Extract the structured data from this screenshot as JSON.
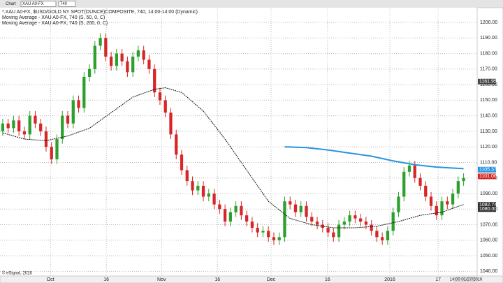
{
  "toolbar": {
    "title": "Chart",
    "symbol": "XAU A0-FX",
    "interval": "740"
  },
  "footer": {
    "copyright": "© eSignal, 2016",
    "time": "14:00 01/27/2016"
  },
  "chart_data": {
    "type": "candlestick",
    "legend": [
      "*.XAU A0-FX, $USD/GOLD NY SPOT(OUNCE)COMPOSITE, 740, 14:00-14:00 (Dynamic)"
    ],
    "x": [
      0,
      1,
      2,
      3,
      4,
      5,
      6,
      7,
      8,
      9,
      10,
      11,
      12,
      13,
      14,
      15,
      16,
      17,
      18,
      19,
      20,
      21,
      22,
      23,
      24,
      25,
      26,
      27,
      28,
      29,
      30,
      31,
      32,
      33,
      34,
      35,
      36,
      37,
      38,
      39,
      40,
      41,
      42,
      43,
      44,
      45,
      46,
      47,
      48,
      49,
      50,
      51,
      52,
      53,
      54,
      55,
      56,
      57,
      58,
      59,
      60,
      61,
      62,
      63,
      64,
      65,
      66,
      67,
      68,
      69,
      70,
      71,
      72,
      73,
      74,
      75,
      76,
      77,
      78,
      79,
      80,
      81,
      82,
      83,
      84,
      85
    ],
    "open": [
      1130,
      1135,
      1132,
      1137,
      1130,
      1128,
      1140,
      1135,
      1130,
      1120,
      1112,
      1125,
      1140,
      1135,
      1150,
      1145,
      1165,
      1170,
      1185,
      1190,
      1178,
      1172,
      1180,
      1175,
      1168,
      1178,
      1182,
      1176,
      1170,
      1155,
      1150,
      1142,
      1128,
      1115,
      1105,
      1098,
      1092,
      1095,
      1088,
      1090,
      1083,
      1080,
      1072,
      1078,
      1082,
      1076,
      1072,
      1068,
      1065,
      1066,
      1062,
      1060,
      1062,
      1085,
      1083,
      1078,
      1082,
      1075,
      1072,
      1070,
      1068,
      1065,
      1062,
      1070,
      1072,
      1076,
      1074,
      1072,
      1070,
      1066,
      1062,
      1060,
      1066,
      1078,
      1088,
      1104,
      1108,
      1100,
      1095,
      1088,
      1082,
      1076,
      1085,
      1083,
      1090,
      1098
    ],
    "high": [
      1138,
      1138,
      1140,
      1140,
      1133,
      1143,
      1143,
      1138,
      1133,
      1123,
      1128,
      1143,
      1143,
      1153,
      1153,
      1168,
      1173,
      1188,
      1193,
      1193,
      1181,
      1183,
      1183,
      1178,
      1181,
      1185,
      1185,
      1179,
      1173,
      1158,
      1153,
      1145,
      1131,
      1118,
      1108,
      1101,
      1098,
      1098,
      1093,
      1093,
      1086,
      1083,
      1081,
      1085,
      1085,
      1079,
      1075,
      1071,
      1069,
      1069,
      1065,
      1065,
      1088,
      1088,
      1086,
      1085,
      1085,
      1078,
      1075,
      1073,
      1071,
      1068,
      1073,
      1075,
      1079,
      1079,
      1077,
      1075,
      1073,
      1069,
      1065,
      1069,
      1081,
      1091,
      1107,
      1111,
      1111,
      1103,
      1098,
      1091,
      1085,
      1088,
      1088,
      1093,
      1101,
      1103
    ],
    "low": [
      1127,
      1129,
      1129,
      1127,
      1125,
      1125,
      1132,
      1127,
      1117,
      1109,
      1109,
      1122,
      1132,
      1132,
      1142,
      1142,
      1162,
      1167,
      1182,
      1175,
      1169,
      1169,
      1172,
      1165,
      1165,
      1175,
      1173,
      1167,
      1152,
      1147,
      1139,
      1125,
      1112,
      1102,
      1095,
      1089,
      1089,
      1085,
      1085,
      1080,
      1077,
      1069,
      1069,
      1075,
      1073,
      1069,
      1065,
      1062,
      1062,
      1059,
      1057,
      1057,
      1059,
      1080,
      1075,
      1075,
      1072,
      1069,
      1067,
      1065,
      1062,
      1059,
      1059,
      1067,
      1069,
      1071,
      1069,
      1067,
      1063,
      1059,
      1057,
      1057,
      1063,
      1075,
      1085,
      1101,
      1097,
      1092,
      1085,
      1079,
      1073,
      1073,
      1080,
      1080,
      1087,
      1095
    ],
    "close": [
      1135,
      1132,
      1137,
      1130,
      1128,
      1140,
      1135,
      1130,
      1120,
      1112,
      1125,
      1140,
      1135,
      1150,
      1145,
      1165,
      1170,
      1185,
      1190,
      1178,
      1172,
      1180,
      1175,
      1168,
      1178,
      1182,
      1176,
      1170,
      1155,
      1150,
      1142,
      1128,
      1115,
      1105,
      1098,
      1092,
      1095,
      1088,
      1090,
      1083,
      1080,
      1072,
      1078,
      1082,
      1076,
      1072,
      1068,
      1065,
      1066,
      1062,
      1060,
      1062,
      1085,
      1083,
      1078,
      1082,
      1075,
      1072,
      1070,
      1068,
      1065,
      1062,
      1070,
      1072,
      1076,
      1074,
      1072,
      1070,
      1066,
      1062,
      1060,
      1066,
      1078,
      1088,
      1104,
      1108,
      1100,
      1095,
      1088,
      1082,
      1076,
      1085,
      1083,
      1090,
      1098,
      1100
    ],
    "up_color": "#2ca02c",
    "down_color": "#d62728",
    "series": [
      {
        "name": "Moving Average - XAU A0-FX, 740 (S, 50, 0, C)",
        "color": "#111111",
        "dashed": true,
        "x": [
          0,
          4,
          8,
          12,
          16,
          20,
          24,
          28,
          30,
          33,
          37,
          41,
          45,
          49,
          53,
          57,
          61,
          65,
          69,
          73,
          77,
          81,
          85
        ],
        "values": [
          1129,
          1125,
          1124,
          1127,
          1132,
          1142,
          1152,
          1157,
          1158,
          1155,
          1143,
          1125,
          1105,
          1085,
          1074,
          1070,
          1068,
          1068,
          1069,
          1072,
          1076,
          1078,
          1083
        ]
      },
      {
        "name": "Moving Average - XAU A0-FX, 740 (S, 200, 0, C)",
        "color": "#2a93e0",
        "dashed": false,
        "x": [
          52,
          56,
          60,
          64,
          68,
          72,
          76,
          80,
          85
        ],
        "values": [
          1120,
          1119.5,
          1118,
          1116,
          1114,
          1111,
          1108.5,
          1107,
          1106
        ]
      }
    ],
    "price_labels": [
      {
        "value": 1161.95,
        "label": "1161.95",
        "color": "#444444"
      },
      {
        "value": 1105.37,
        "label": "1105.37",
        "color": "#2a93e0"
      },
      {
        "value": 1101.06,
        "label": "1101.06",
        "color": "#d62728"
      },
      {
        "value": 1082.74,
        "label": "1082.74",
        "color": "#333333"
      },
      {
        "value": 1080,
        "label": "1080.00",
        "color": "#333333"
      }
    ],
    "xlim": [
      -0.5,
      87.5
    ],
    "xticks": [
      {
        "value": 8.8,
        "label": "Oct"
      },
      {
        "value": 19.1,
        "label": "16"
      },
      {
        "value": 29.3,
        "label": "Nov"
      },
      {
        "value": 39.6,
        "label": "16"
      },
      {
        "value": 49.5,
        "label": "Dec"
      },
      {
        "value": 59.9,
        "label": "16"
      },
      {
        "value": 71.4,
        "label": "2016"
      },
      {
        "value": 80.3,
        "label": "17"
      }
    ],
    "ylim": [
      1037,
      1209
    ],
    "yticks": [
      {
        "value": 1040,
        "label": "1040.00"
      },
      {
        "value": 1050,
        "label": "1050.00"
      },
      {
        "value": 1060,
        "label": "1060.00"
      },
      {
        "value": 1070,
        "label": "1070.00"
      },
      {
        "value": 1080,
        "label": "1080.00"
      },
      {
        "value": 1090,
        "label": "1090.00"
      },
      {
        "value": 1100,
        "label": "1100.00"
      },
      {
        "value": 1110,
        "label": "1110.00"
      },
      {
        "value": 1120,
        "label": "1120.00"
      },
      {
        "value": 1130,
        "label": "1130.00"
      },
      {
        "value": 1140,
        "label": "1140.00"
      },
      {
        "value": 1150,
        "label": "1150.00"
      },
      {
        "value": 1160,
        "label": "1160.00"
      },
      {
        "value": 1170,
        "label": "1170.00"
      },
      {
        "value": 1180,
        "label": "1180.00"
      },
      {
        "value": 1190,
        "label": "1190.00"
      },
      {
        "value": 1200,
        "label": "1200.00"
      }
    ],
    "grid": true
  }
}
